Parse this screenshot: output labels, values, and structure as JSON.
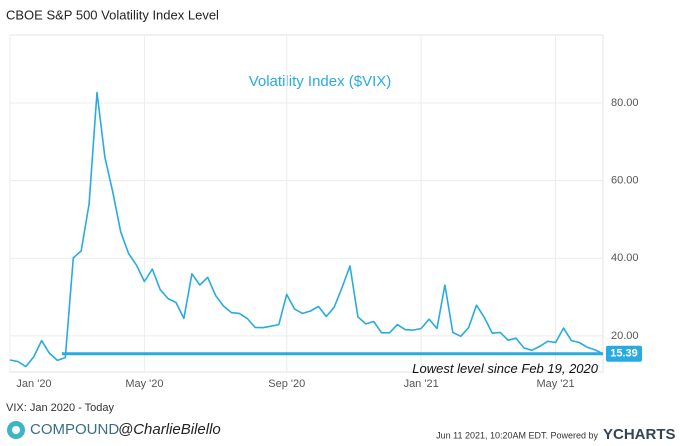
{
  "chart_data": {
    "type": "line",
    "title": "CBOE S&P 500 Volatility Index Level",
    "inner_title": "Volatility Index ($VIX)",
    "categories": [
      "Jan '20",
      null,
      null,
      null,
      null,
      null,
      null,
      null,
      null,
      null,
      null,
      null,
      null,
      null,
      null,
      null,
      null,
      "May '20",
      null,
      null,
      null,
      null,
      null,
      null,
      null,
      null,
      null,
      null,
      null,
      null,
      null,
      null,
      null,
      null,
      null,
      "Sep '20",
      null,
      null,
      null,
      null,
      null,
      null,
      null,
      null,
      null,
      null,
      null,
      null,
      null,
      null,
      null,
      null,
      "Jan '21",
      null,
      null,
      null,
      null,
      null,
      null,
      null,
      null,
      null,
      null,
      null,
      null,
      null,
      null,
      null,
      null,
      "May '21",
      null,
      null,
      null,
      null,
      null,
      null
    ],
    "series": [
      {
        "name": "VIX",
        "color": "#29abe2",
        "values": [
          13.8,
          13.4,
          12.1,
          14.6,
          18.8,
          15.5,
          13.7,
          14.4,
          40.1,
          41.9,
          54,
          82.7,
          66,
          57,
          46.8,
          41.2,
          38.2,
          34,
          37.2,
          31.9,
          29.6,
          28.6,
          24.5,
          36,
          33.1,
          35.1,
          30.4,
          27.7,
          26,
          25.8,
          24.5,
          22.2,
          22.1,
          22.5,
          22.9,
          30.7,
          26.9,
          25.8,
          26.4,
          27.6,
          25,
          27.4,
          32.5,
          38,
          24.9,
          23.1,
          23.7,
          20.8,
          20.8,
          22.9,
          21.6,
          21.5,
          21.9,
          24.3,
          21.9,
          33.1,
          20.9,
          19.9,
          22.1,
          27.9,
          24.7,
          20.7,
          20.9,
          18.9,
          19.4,
          16.9,
          16.3,
          17.3,
          18.6,
          18.3,
          22,
          18.8,
          18.3,
          17.1,
          16.4,
          15.4
        ]
      }
    ],
    "ylim": [
      10.7,
      97.5
    ],
    "yticks": [
      {
        "value": 20,
        "label": "20.00"
      },
      {
        "value": 40,
        "label": "40.00"
      },
      {
        "value": 60,
        "label": "60.00"
      },
      {
        "value": 80,
        "label": "80.00"
      }
    ],
    "grid": true,
    "reference_line": {
      "value": 15.39,
      "label": "15.39",
      "annotation": "Lowest level since Feb 19, 2020"
    },
    "footnote": "VIX: Jan 2020 - Today",
    "brand": "COMPOUND",
    "handle": "@CharlieBilello",
    "timestamp": "Jun 11 2021, 10:20AM EDT.",
    "powered_by": "Powered by",
    "provider": "YCHARTS"
  }
}
